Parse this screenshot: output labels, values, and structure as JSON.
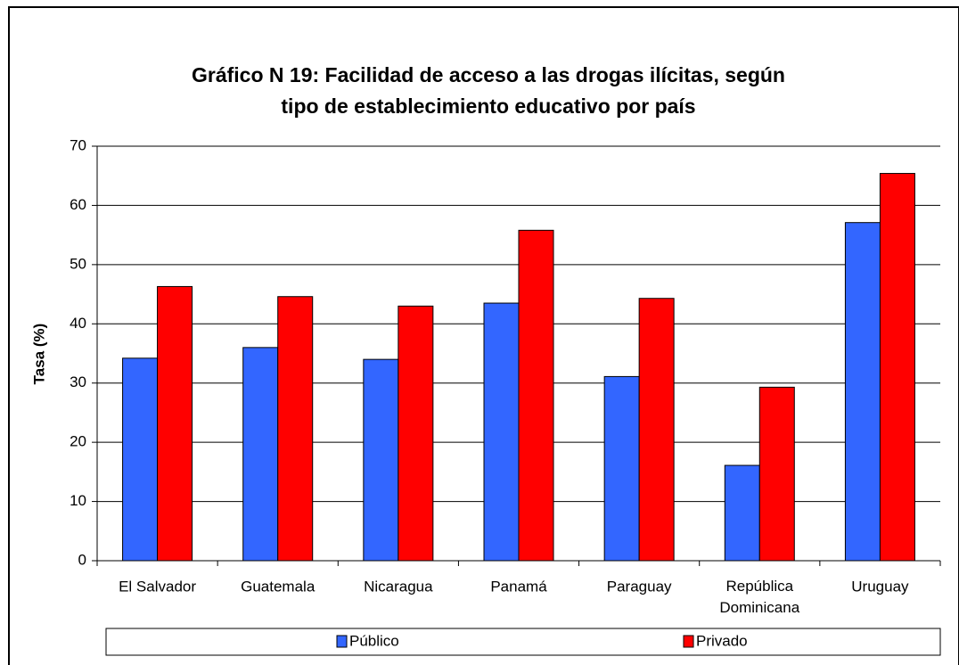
{
  "chart_data": {
    "type": "bar",
    "title": [
      "Gráfico N 19: Facilidad de acceso a las drogas ilícitas, según",
      "tipo de establecimiento educativo por país"
    ],
    "y_label": "Tasa (%)",
    "categories": [
      "El Salvador",
      "Guatemala",
      "Nicaragua",
      "Panamá",
      "Paraguay",
      "República Dominicana",
      "Uruguay"
    ],
    "series": [
      {
        "name": "Público",
        "color": "#3366ff",
        "values": [
          34.2,
          36.0,
          34.0,
          43.5,
          31.1,
          16.1,
          57.1
        ]
      },
      {
        "name": "Privado",
        "color": "#ff0000",
        "values": [
          46.3,
          44.6,
          43.0,
          55.8,
          44.3,
          29.3,
          65.4
        ]
      }
    ],
    "ylim": [
      0,
      70
    ],
    "yticks": [
      0,
      10,
      20,
      30,
      40,
      50,
      60,
      70
    ],
    "grid": true,
    "legend": "bottom"
  }
}
